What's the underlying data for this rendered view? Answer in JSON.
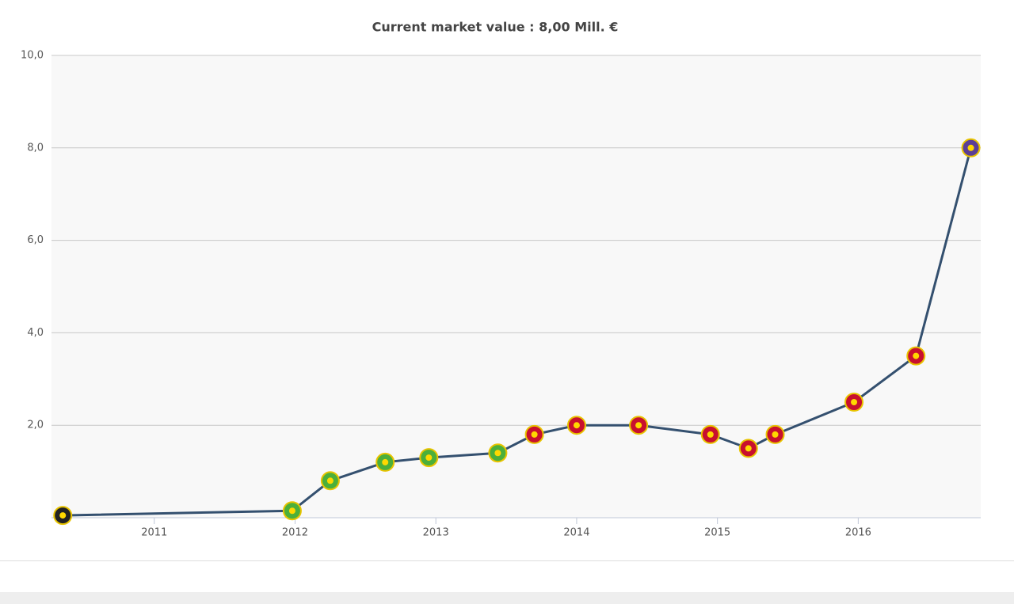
{
  "chart_data": {
    "type": "line",
    "title": "Current market value : 8,00 Mill. €",
    "x": [
      2010.35,
      2011.98,
      2012.25,
      2012.64,
      2012.95,
      2013.44,
      2013.7,
      2014.0,
      2014.44,
      2014.95,
      2015.22,
      2015.41,
      2015.97,
      2016.41,
      2016.8
    ],
    "series": [
      {
        "name": "Market value",
        "color": "#34506f",
        "values": [
          0.05,
          0.15,
          0.8,
          1.2,
          1.3,
          1.4,
          1.8,
          2.0,
          2.0,
          1.8,
          1.5,
          1.8,
          2.5,
          3.5,
          8.0
        ]
      }
    ],
    "marker_colors": [
      "#222222",
      "#4caf3a",
      "#4caf3a",
      "#4caf3a",
      "#4caf3a",
      "#4caf3a",
      "#c8102e",
      "#c8102e",
      "#c8102e",
      "#c8102e",
      "#c8102e",
      "#c8102e",
      "#c8102e",
      "#c8102e",
      "#5b3e96"
    ],
    "xlim": [
      2010.27,
      2016.87
    ],
    "xticks": [
      2011,
      2012,
      2013,
      2014,
      2015,
      2016
    ],
    "ylim": [
      0,
      10
    ],
    "yticks": [
      {
        "value": 2,
        "label": "2,0"
      },
      {
        "value": 4,
        "label": "4,0"
      },
      {
        "value": 6,
        "label": "6,0"
      },
      {
        "value": 8,
        "label": "8,0"
      },
      {
        "value": 10,
        "label": "10,0"
      }
    ],
    "grid": true
  }
}
